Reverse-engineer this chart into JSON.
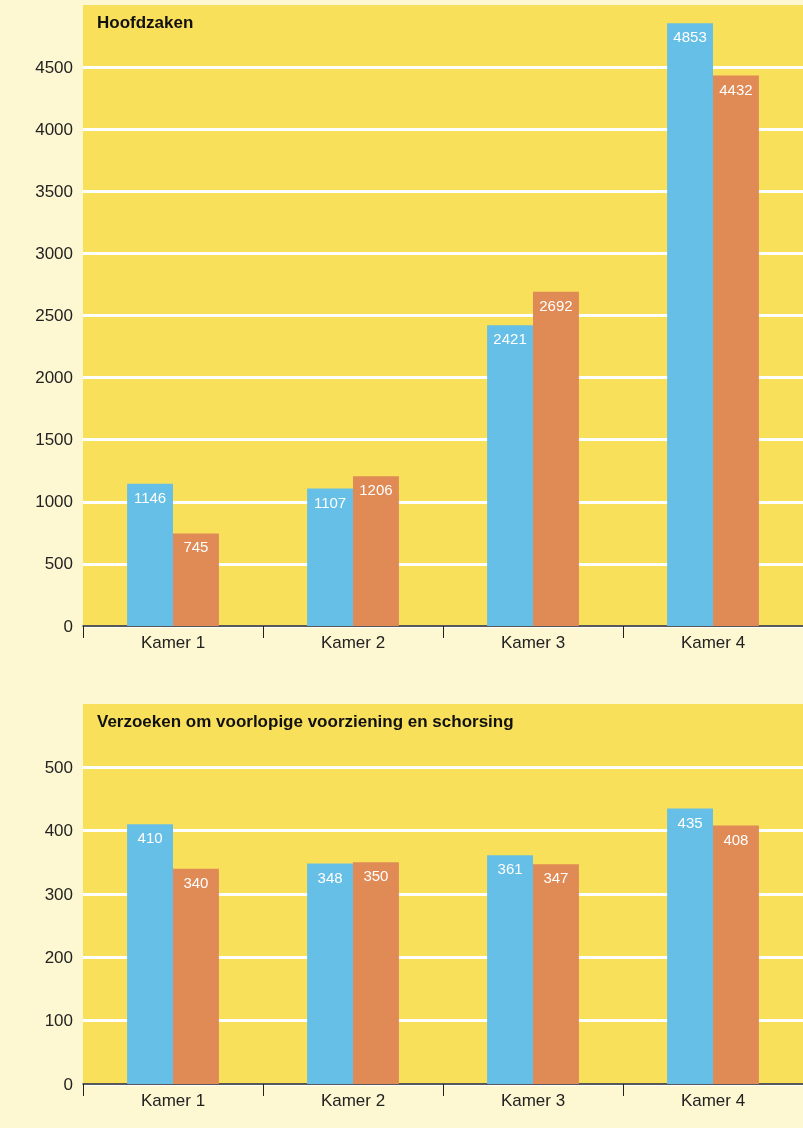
{
  "chart_data": [
    {
      "type": "bar",
      "title": "Hoofdzaken",
      "categories": [
        "Kamer 1",
        "Kamer 2",
        "Kamer 3",
        "Kamer 4"
      ],
      "series": [
        {
          "color": "#66bfe6",
          "values": [
            1146,
            1107,
            2421,
            4853
          ]
        },
        {
          "color": "#e08a55",
          "values": [
            745,
            1206,
            2692,
            4432
          ]
        }
      ],
      "ylim": [
        0,
        5000
      ],
      "yticks": [
        0,
        500,
        1000,
        1500,
        2000,
        2500,
        3000,
        3500,
        4000,
        4500
      ],
      "grid": "y",
      "data_labels": true
    },
    {
      "type": "bar",
      "title": "Verzoeken om voorlopige voorziening en schorsing",
      "categories": [
        "Kamer 1",
        "Kamer 2",
        "Kamer 3",
        "Kamer 4"
      ],
      "series": [
        {
          "color": "#66bfe6",
          "values": [
            410,
            348,
            361,
            435
          ]
        },
        {
          "color": "#e08a55",
          "values": [
            340,
            350,
            347,
            408
          ]
        }
      ],
      "ylim": [
        0,
        600
      ],
      "yticks": [
        0,
        100,
        200,
        300,
        400,
        500
      ],
      "grid": "y",
      "data_labels": true
    }
  ]
}
